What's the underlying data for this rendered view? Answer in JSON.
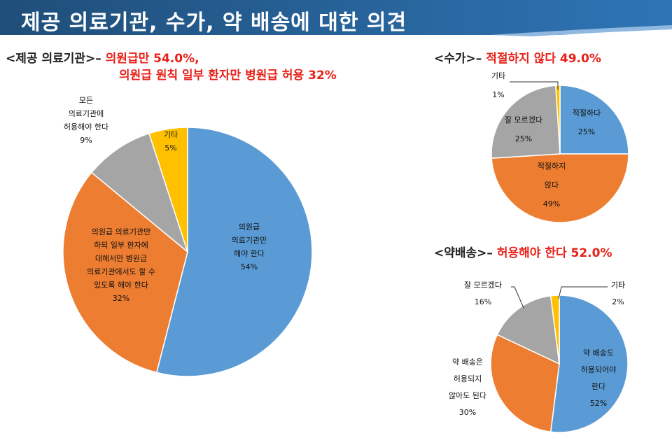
{
  "banner": {
    "title": "제공 의료기관, 수가, 약 배송에 대한 의견",
    "color_dark": "#1f4e79",
    "color_light": "#2e75b6"
  },
  "colors": {
    "blue": "#5b9bd5",
    "orange": "#ed7d31",
    "gray": "#a5a5a5",
    "yellow": "#ffc000",
    "highlight": "#e8221a"
  },
  "headings": {
    "institutions": {
      "label": "<제공 의료기관>–",
      "highlight_line1": "의원급만 54.0%,",
      "highlight_line2": "의원급 원칙 일부 환자만 병원급 허용 32%"
    },
    "fee": {
      "label": "<수가>–",
      "highlight": "적절하지 않다 49.0%"
    },
    "delivery": {
      "label": "<약배송>–",
      "highlight": "허용해야 한다 52.0%"
    }
  },
  "chart_data": [
    {
      "type": "pie",
      "id": "institutions",
      "slices": [
        {
          "label_lines": [
            "의원급",
            "의료기관만",
            "해야 한다",
            "54%"
          ],
          "value": 54,
          "color": "#5b9bd5"
        },
        {
          "label_lines": [
            "의원급 의료기관만",
            "하되 일부 환자에",
            "대해서만 병원급",
            "의료기관에서도 할 수",
            "있도록 해야 한다",
            "32%"
          ],
          "value": 32,
          "color": "#ed7d31"
        },
        {
          "label_lines": [
            "모든",
            "의료기관에",
            "허용해야 한다",
            "9%"
          ],
          "value": 9,
          "color": "#a5a5a5"
        },
        {
          "label_lines": [
            "기타",
            "5%"
          ],
          "value": 5,
          "color": "#ffc000"
        }
      ]
    },
    {
      "type": "pie",
      "id": "fee",
      "slices": [
        {
          "label_lines": [
            "적절하다",
            "25%"
          ],
          "value": 25,
          "color": "#5b9bd5"
        },
        {
          "label_lines": [
            "적절하지",
            "않다",
            "49%"
          ],
          "value": 49,
          "color": "#ed7d31"
        },
        {
          "label_lines": [
            "잘 모르겠다",
            "25%"
          ],
          "value": 25,
          "color": "#a5a5a5"
        },
        {
          "label_lines": [
            "기타",
            "1%"
          ],
          "value": 1,
          "color": "#ffc000"
        }
      ]
    },
    {
      "type": "pie",
      "id": "delivery",
      "slices": [
        {
          "label_lines": [
            "약 배송도",
            "허용되어야",
            "한다",
            "52%"
          ],
          "value": 52,
          "color": "#5b9bd5"
        },
        {
          "label_lines": [
            "약 배송은",
            "허용되지",
            "않아도 된다",
            "30%"
          ],
          "value": 30,
          "color": "#ed7d31"
        },
        {
          "label_lines": [
            "잘 모르겠다",
            "16%"
          ],
          "value": 16,
          "color": "#a5a5a5"
        },
        {
          "label_lines": [
            "기타",
            "2%"
          ],
          "value": 2,
          "color": "#ffc000"
        }
      ]
    }
  ]
}
